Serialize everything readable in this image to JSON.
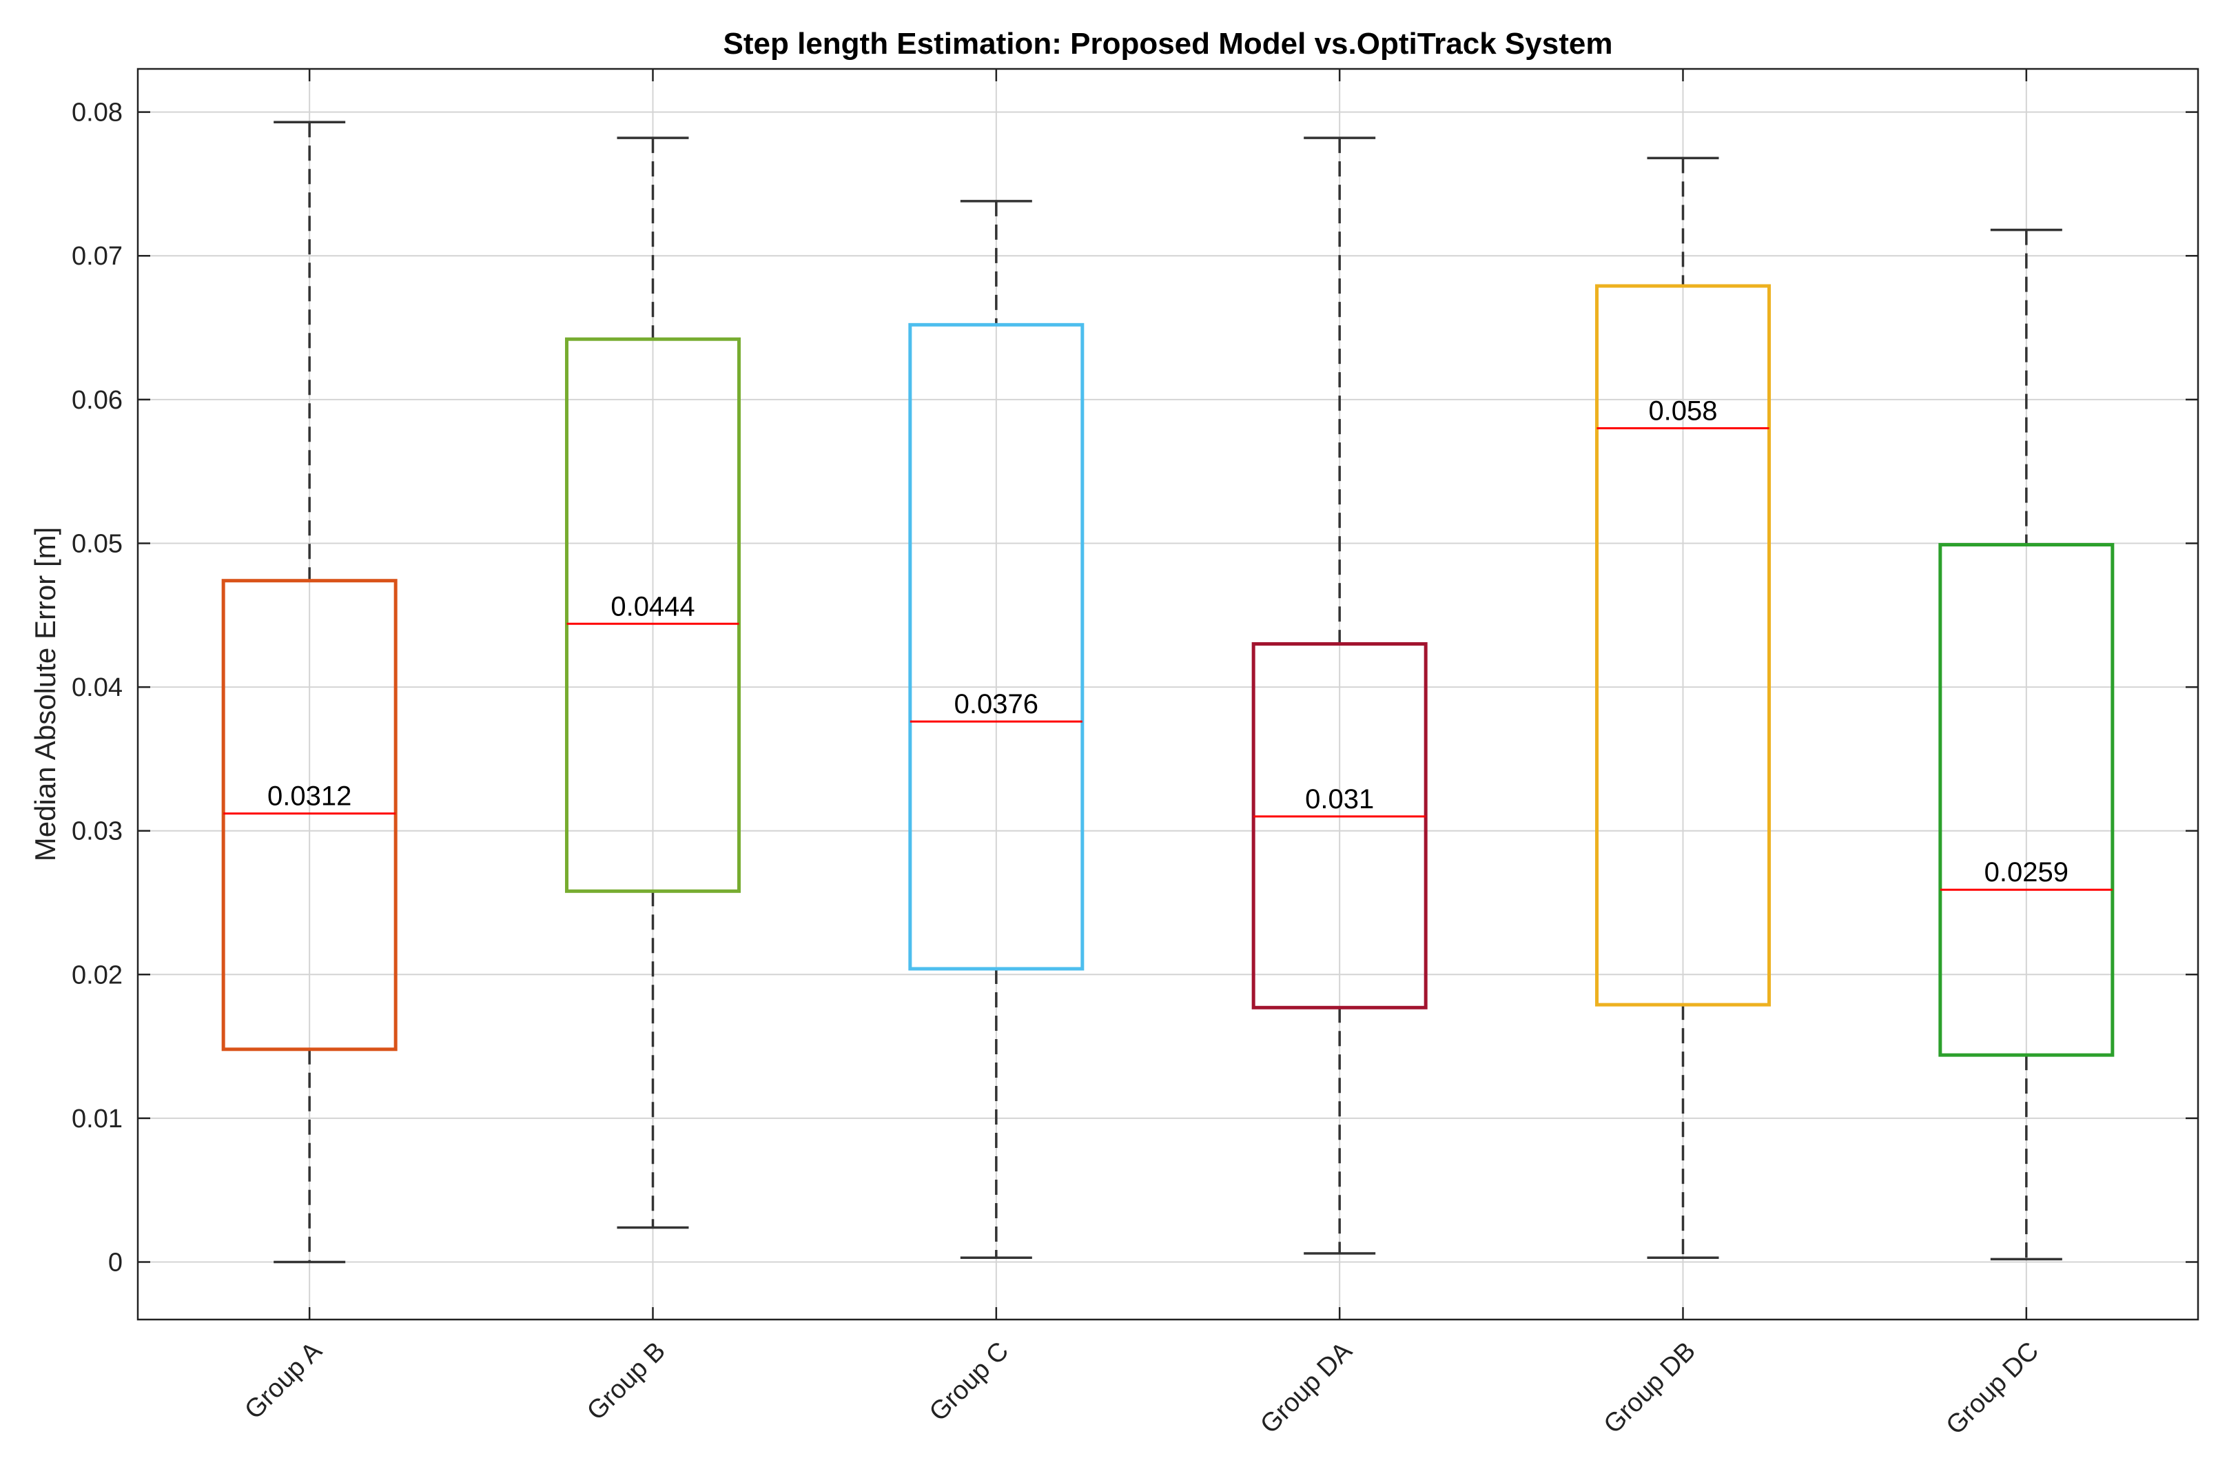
{
  "chart_data": {
    "type": "box",
    "title": "Step length Estimation: Proposed Model vs.OptiTrack System",
    "xlabel": "",
    "ylabel": "Median Absolute Error [m]",
    "ylim": [
      -0.004,
      0.083
    ],
    "yticks": [
      0,
      0.01,
      0.02,
      0.03,
      0.04,
      0.05,
      0.06,
      0.07,
      0.08
    ],
    "ytick_labels": [
      "0",
      "0.01",
      "0.02",
      "0.03",
      "0.04",
      "0.05",
      "0.06",
      "0.07",
      "0.08"
    ],
    "grid": true,
    "categories": [
      "Group A",
      "Group B",
      "Group C",
      "Group DA",
      "Group DB",
      "Group DC"
    ],
    "boxes": [
      {
        "category": "Group A",
        "min": 0.0,
        "q1": 0.0148,
        "median": 0.0312,
        "q3": 0.0474,
        "max": 0.0793,
        "median_label": "0.0312",
        "color": "#D95319"
      },
      {
        "category": "Group B",
        "min": 0.0024,
        "q1": 0.0258,
        "median": 0.0444,
        "q3": 0.0642,
        "max": 0.0782,
        "median_label": "0.0444",
        "color": "#77AC30"
      },
      {
        "category": "Group C",
        "min": 0.0003,
        "q1": 0.0204,
        "median": 0.0376,
        "q3": 0.0652,
        "max": 0.0738,
        "median_label": "0.0376",
        "color": "#4DBEEE"
      },
      {
        "category": "Group DA",
        "min": 0.0006,
        "q1": 0.0177,
        "median": 0.031,
        "q3": 0.043,
        "max": 0.0782,
        "median_label": "0.031",
        "color": "#A2142F"
      },
      {
        "category": "Group DB",
        "min": 0.0003,
        "q1": 0.0179,
        "median": 0.058,
        "q3": 0.0679,
        "max": 0.0768,
        "median_label": "0.058",
        "color": "#EDB120"
      },
      {
        "category": "Group DC",
        "min": 0.0002,
        "q1": 0.0144,
        "median": 0.0259,
        "q3": 0.0499,
        "max": 0.0718,
        "median_label": "0.0259",
        "color": "#2CA02C"
      }
    ],
    "median_color": "#FF0000",
    "whisker_color": "#333333"
  }
}
